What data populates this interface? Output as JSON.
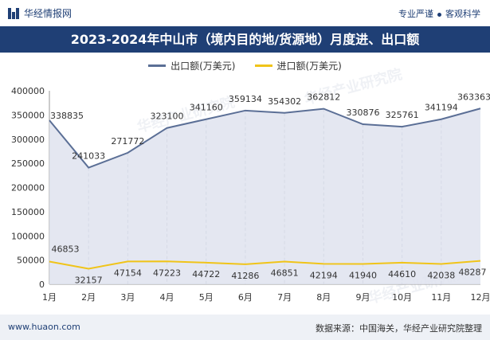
{
  "header": {
    "brand": "华经情报网",
    "slogan_left": "专业严谨",
    "slogan_right": "客观科学"
  },
  "watermark": "华经产业研究院",
  "footer": {
    "site": "www.huaon.com",
    "source": "数据来源：中国海关，华经产业研究院整理"
  },
  "colors": {
    "export": "#5b6f96",
    "import": "#f0c419",
    "area": "#dfe3ee",
    "title_bg": "#1f3f75"
  },
  "chart_data": {
    "type": "line",
    "title": "2023-2024年中山市（境内目的地/货源地）月度进、出口额",
    "categories": [
      "1月",
      "2月",
      "3月",
      "4月",
      "5月",
      "6月",
      "7月",
      "8月",
      "9月",
      "10月",
      "11月",
      "12月"
    ],
    "series": [
      {
        "name": "出口额(万美元)",
        "values": [
          338835,
          241033,
          271772,
          323100,
          341160,
          359134,
          354302,
          362812,
          330876,
          325761,
          341194,
          363363
        ],
        "area": true
      },
      {
        "name": "进口额(万美元)",
        "values": [
          46853,
          32157,
          47154,
          47223,
          44722,
          41286,
          46851,
          42194,
          41940,
          44610,
          42038,
          48287
        ],
        "area": false
      }
    ],
    "ylim": [
      0,
      400000
    ],
    "yticks": [
      0,
      50000,
      100000,
      150000,
      200000,
      250000,
      300000,
      350000,
      400000
    ],
    "grid": false,
    "legend": "top-center"
  }
}
